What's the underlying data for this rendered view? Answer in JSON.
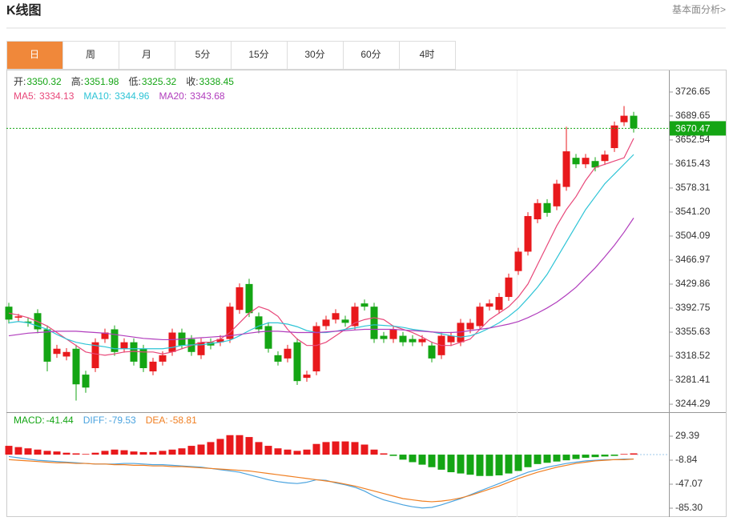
{
  "header": {
    "title": "K线图",
    "link": "基本面分析>"
  },
  "tabs": [
    "日",
    "周",
    "月",
    "5分",
    "15分",
    "30分",
    "60分",
    "4时"
  ],
  "active_tab": 0,
  "chart_data": [
    {
      "type": "candlestick",
      "quote": [
        {
          "label": "开:",
          "value": 3350.32
        },
        {
          "label": "高:",
          "value": 3351.98
        },
        {
          "label": "低:",
          "value": 3325.32
        },
        {
          "label": "收:",
          "value": 3338.45
        }
      ],
      "up_color": "#e8191c",
      "down_color": "#14a514",
      "open": [
        3395,
        3378,
        3372,
        3385,
        3360,
        3322,
        3318,
        3330,
        3290,
        3300,
        3345,
        3360,
        3330,
        3340,
        3330,
        3295,
        3310,
        3325,
        3355,
        3345,
        3320,
        3340,
        3340,
        3345,
        3390,
        3430,
        3380,
        3365,
        3320,
        3315,
        3340,
        3285,
        3295,
        3365,
        3375,
        3375,
        3365,
        3400,
        3395,
        3350,
        3345,
        3350,
        3345,
        3340,
        3335,
        3320,
        3340,
        3340,
        3360,
        3365,
        3395,
        3390,
        3410,
        3450,
        3480,
        3530,
        3555,
        3550,
        3580,
        3625,
        3615,
        3620,
        3620,
        3640,
        3680,
        3690
      ],
      "high": [
        3401,
        3384,
        3378,
        3391,
        3366,
        3336,
        3331,
        3336,
        3296,
        3346,
        3361,
        3366,
        3346,
        3346,
        3336,
        3316,
        3326,
        3361,
        3361,
        3351,
        3346,
        3346,
        3351,
        3401,
        3431,
        3438,
        3386,
        3371,
        3326,
        3336,
        3346,
        3296,
        3371,
        3381,
        3391,
        3381,
        3401,
        3406,
        3401,
        3356,
        3366,
        3356,
        3351,
        3351,
        3341,
        3356,
        3356,
        3376,
        3376,
        3401,
        3406,
        3416,
        3446,
        3486,
        3541,
        3561,
        3561,
        3591,
        3673,
        3631,
        3631,
        3626,
        3636,
        3681,
        3705,
        3696
      ],
      "low": [
        3369,
        3372,
        3364,
        3354,
        3295,
        3316,
        3312,
        3250,
        3262,
        3294,
        3339,
        3319,
        3324,
        3304,
        3294,
        3289,
        3304,
        3319,
        3329,
        3319,
        3314,
        3329,
        3334,
        3339,
        3384,
        3379,
        3354,
        3324,
        3304,
        3309,
        3274,
        3279,
        3289,
        3359,
        3369,
        3364,
        3359,
        3389,
        3339,
        3339,
        3339,
        3334,
        3334,
        3334,
        3309,
        3314,
        3334,
        3334,
        3354,
        3359,
        3389,
        3384,
        3404,
        3444,
        3474,
        3524,
        3534,
        3544,
        3574,
        3609,
        3609,
        3604,
        3614,
        3634,
        3674,
        3664
      ],
      "close": [
        3375,
        3380,
        3370,
        3360,
        3310,
        3330,
        3325,
        3275,
        3270,
        3340,
        3355,
        3325,
        3340,
        3310,
        3300,
        3310,
        3320,
        3355,
        3335,
        3325,
        3340,
        3335,
        3345,
        3395,
        3425,
        3385,
        3360,
        3330,
        3310,
        3330,
        3280,
        3290,
        3365,
        3375,
        3385,
        3370,
        3395,
        3395,
        3345,
        3345,
        3360,
        3340,
        3340,
        3345,
        3315,
        3350,
        3350,
        3370,
        3370,
        3395,
        3400,
        3410,
        3440,
        3480,
        3535,
        3555,
        3540,
        3585,
        3635,
        3615,
        3625,
        3610,
        3630,
        3675,
        3690,
        3670.47
      ],
      "series": [
        {
          "label": "MA5:",
          "value": 3334.13,
          "color": "#e8487a",
          "values": [
            3385,
            3382,
            3378,
            3372,
            3365,
            3355,
            3345,
            3335,
            3325,
            3322,
            3320,
            3322,
            3325,
            3326,
            3325,
            3325,
            3322,
            3325,
            3330,
            3335,
            3340,
            3340,
            3345,
            3355,
            3370,
            3385,
            3395,
            3390,
            3380,
            3360,
            3345,
            3335,
            3335,
            3340,
            3350,
            3360,
            3370,
            3375,
            3378,
            3375,
            3365,
            3360,
            3355,
            3348,
            3340,
            3335,
            3335,
            3340,
            3345,
            3360,
            3375,
            3385,
            3395,
            3410,
            3430,
            3460,
            3490,
            3520,
            3545,
            3565,
            3590,
            3610,
            3615,
            3620,
            3625,
            3655
          ]
        },
        {
          "label": "MA10:",
          "value": 3344.96,
          "color": "#2ec4d6",
          "values": [
            3370,
            3372,
            3370,
            3365,
            3360,
            3352,
            3345,
            3340,
            3337,
            3335,
            3333,
            3330,
            3330,
            3330,
            3330,
            3330,
            3330,
            3332,
            3335,
            3336,
            3336,
            3338,
            3340,
            3343,
            3350,
            3358,
            3365,
            3370,
            3370,
            3368,
            3364,
            3358,
            3355,
            3355,
            3357,
            3360,
            3362,
            3365,
            3367,
            3366,
            3365,
            3363,
            3360,
            3358,
            3356,
            3353,
            3350,
            3348,
            3350,
            3355,
            3362,
            3370,
            3380,
            3392,
            3408,
            3425,
            3445,
            3470,
            3495,
            3520,
            3545,
            3565,
            3585,
            3600,
            3615,
            3630
          ]
        },
        {
          "label": "MA20:",
          "value": 3343.68,
          "color": "#b13dbd",
          "values": [
            3350,
            3352,
            3354,
            3355,
            3356,
            3357,
            3357,
            3357,
            3356,
            3355,
            3354,
            3352,
            3350,
            3348,
            3346,
            3345,
            3344,
            3344,
            3345,
            3346,
            3347,
            3348,
            3349,
            3350,
            3352,
            3354,
            3356,
            3357,
            3357,
            3356,
            3355,
            3355,
            3355,
            3356,
            3357,
            3358,
            3359,
            3360,
            3360,
            3360,
            3360,
            3359,
            3358,
            3357,
            3356,
            3355,
            3355,
            3356,
            3358,
            3360,
            3362,
            3365,
            3368,
            3372,
            3378,
            3385,
            3393,
            3402,
            3413,
            3425,
            3440,
            3455,
            3472,
            3490,
            3510,
            3532
          ]
        }
      ],
      "current_price": 3670.47,
      "current_color": "#14a514",
      "ylim": [
        3232,
        3760
      ],
      "yticks": [
        3726.65,
        3689.65,
        3652.54,
        3615.43,
        3578.31,
        {
          "value": 3541.2,
          "label": "3541.20"
        },
        3504.09,
        3466.97,
        3429.86,
        3392.75,
        3355.63,
        3318.52,
        3281.41,
        3244.29
      ]
    },
    {
      "type": "macd",
      "series": [
        {
          "label": "MACD:",
          "value": -41.44,
          "color": "#14a514",
          "up_color": "#e8191c",
          "down_color": "#14a514",
          "values": [
            14,
            12,
            10,
            8,
            6,
            5,
            3,
            2,
            1,
            3,
            6,
            8,
            7,
            5,
            4,
            4,
            6,
            8,
            10,
            14,
            16,
            20,
            25,
            31,
            31,
            28,
            20,
            14,
            10,
            8,
            6,
            8,
            17,
            20,
            21,
            21,
            20,
            16,
            8,
            2,
            -2,
            -8,
            -12,
            -16,
            -20,
            -24,
            -28,
            -30,
            -32,
            -34,
            -34,
            -33,
            -30,
            -26,
            -20,
            -15,
            -13,
            -11,
            -9,
            -7,
            -5,
            -4,
            -3,
            -2,
            1,
            2
          ]
        },
        {
          "label": "DIFF:",
          "value": -79.53,
          "color": "#4aa3df",
          "values": [
            -3,
            -5,
            -7,
            -9,
            -10,
            -11,
            -12,
            -13,
            -14,
            -15,
            -15,
            -15,
            -14,
            -14,
            -15,
            -16,
            -16,
            -17,
            -18,
            -19,
            -20,
            -22,
            -24,
            -26,
            -28,
            -32,
            -36,
            -40,
            -43,
            -45,
            -46,
            -44,
            -40,
            -41,
            -45,
            -48,
            -52,
            -58,
            -66,
            -72,
            -76,
            -80,
            -83,
            -85,
            -84,
            -80,
            -75,
            -70,
            -64,
            -58,
            -52,
            -46,
            -40,
            -34,
            -28,
            -24,
            -20,
            -17,
            -14,
            -12,
            -10,
            -9,
            -8,
            -8,
            -7,
            -7
          ]
        },
        {
          "label": "DEA:",
          "value": -58.81,
          "color": "#f07f22",
          "values": [
            -8,
            -9,
            -10,
            -11,
            -12,
            -13,
            -13,
            -14,
            -14,
            -15,
            -15,
            -16,
            -16,
            -17,
            -17,
            -18,
            -18,
            -19,
            -19,
            -20,
            -21,
            -22,
            -23,
            -24,
            -25,
            -26,
            -28,
            -30,
            -32,
            -34,
            -36,
            -38,
            -40,
            -42,
            -44,
            -47,
            -50,
            -54,
            -58,
            -62,
            -66,
            -70,
            -72,
            -74,
            -75,
            -74,
            -72,
            -69,
            -65,
            -60,
            -55,
            -50,
            -44,
            -38,
            -33,
            -28,
            -24,
            -20,
            -17,
            -14,
            -12,
            -10,
            -9,
            -8,
            -8,
            -7
          ]
        }
      ],
      "ylim": [
        -99.3,
        67.6
      ],
      "yticks": [
        29.39,
        -8.84,
        -47.07,
        {
          "value": -85.3,
          "label": "-85.30"
        }
      ]
    }
  ]
}
